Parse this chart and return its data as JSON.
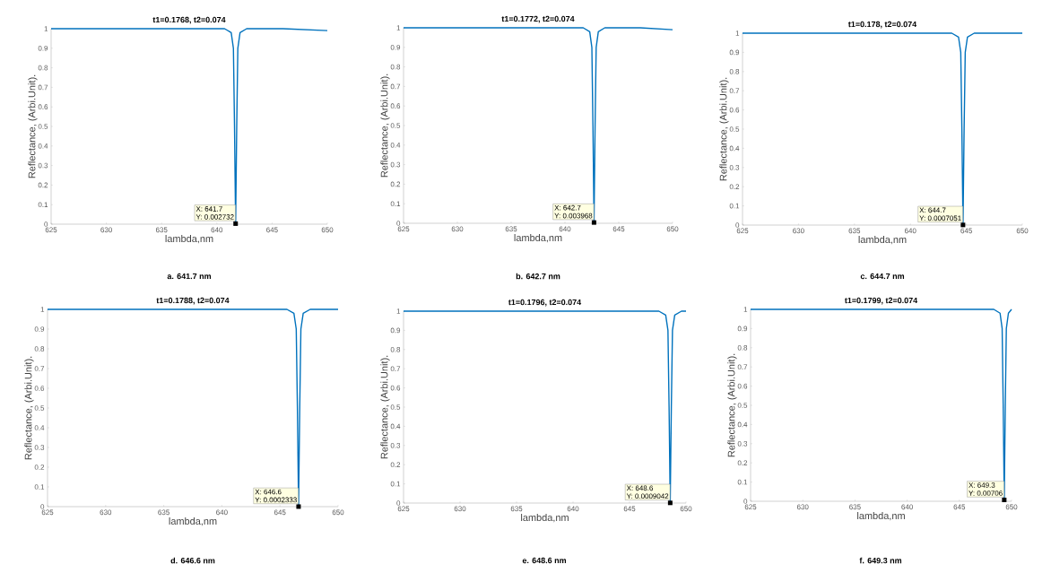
{
  "chart_data": [
    {
      "type": "line",
      "title": "t1=0.1768, t2=0.074",
      "xlabel": "lambda,nm",
      "ylabel": "Reflectance, (Arbi.Unit).",
      "xlim": [
        625,
        650
      ],
      "ylim": [
        0,
        1
      ],
      "xticks": [
        625,
        630,
        635,
        640,
        645,
        650
      ],
      "yticks": [
        0,
        0.1,
        0.2,
        0.3,
        0.4,
        0.5,
        0.6,
        0.7,
        0.8,
        0.9,
        1
      ],
      "grid": false,
      "series": [
        {
          "color": "#0072bd",
          "x": [
            625,
            635,
            640.7,
            641.3,
            641.5,
            641.6,
            641.7,
            641.8,
            641.9,
            642.1,
            642.7,
            646,
            650
          ],
          "values": [
            1,
            1,
            1,
            0.98,
            0.9,
            0.5,
            0.002732,
            0.5,
            0.9,
            0.98,
            1,
            1,
            0.99
          ]
        }
      ],
      "annotations": [
        {
          "text": "X: 641.7",
          "x": 641.7,
          "y": 0.002732
        },
        {
          "text": "Y: 0.002732",
          "x": 641.7,
          "y": 0.002732
        },
        "a. 641.7 nm"
      ]
    },
    {
      "type": "line",
      "title": "t1=0.1772, t2=0.074",
      "xlabel": "lambda,nm",
      "ylabel": "Reflectance, (Arbi.Unit).",
      "xlim": [
        625,
        650
      ],
      "ylim": [
        0,
        1
      ],
      "xticks": [
        625,
        630,
        635,
        640,
        645,
        650
      ],
      "yticks": [
        0,
        0.1,
        0.2,
        0.3,
        0.4,
        0.5,
        0.6,
        0.7,
        0.8,
        0.9,
        1
      ],
      "grid": false,
      "series": [
        {
          "color": "#0072bd",
          "x": [
            625,
            635,
            641.7,
            642.3,
            642.5,
            642.6,
            642.7,
            642.8,
            642.9,
            643.1,
            643.7,
            647,
            650
          ],
          "values": [
            1,
            1,
            1,
            0.98,
            0.9,
            0.5,
            0.003968,
            0.5,
            0.9,
            0.98,
            1,
            1,
            0.99
          ]
        }
      ],
      "annotations": [
        {
          "text": "X: 642.7",
          "x": 642.7,
          "y": 0.003968
        },
        {
          "text": "Y: 0.003968",
          "x": 642.7,
          "y": 0.003968
        },
        "b. 642.7 nm"
      ]
    },
    {
      "type": "line",
      "title": "t1=0.178, t2=0.074",
      "xlabel": "lambda,nm",
      "ylabel": "Reflectance, (Arbi.Unit).",
      "xlim": [
        625,
        650
      ],
      "ylim": [
        0,
        1
      ],
      "xticks": [
        625,
        630,
        635,
        640,
        645,
        650
      ],
      "yticks": [
        0,
        0.1,
        0.2,
        0.3,
        0.4,
        0.5,
        0.6,
        0.7,
        0.8,
        0.9,
        1
      ],
      "grid": false,
      "series": [
        {
          "color": "#0072bd",
          "x": [
            625,
            635,
            643.7,
            644.3,
            644.5,
            644.6,
            644.7,
            644.8,
            644.9,
            645.1,
            645.7,
            650
          ],
          "values": [
            1,
            1,
            1,
            0.98,
            0.9,
            0.5,
            0.0007051,
            0.5,
            0.9,
            0.98,
            1,
            1
          ]
        }
      ],
      "annotations": [
        {
          "text": "X: 644.7",
          "x": 644.7,
          "y": 0.0007051
        },
        {
          "text": "Y: 0.0007051",
          "x": 644.7,
          "y": 0.0007051
        },
        "c. 644.7 nm"
      ]
    },
    {
      "type": "line",
      "title": "t1=0.1788, t2=0.074",
      "xlabel": "lambda,nm",
      "ylabel": "Reflectance, (Arbi.Unit).",
      "xlim": [
        625,
        650
      ],
      "ylim": [
        0,
        1
      ],
      "xticks": [
        625,
        630,
        635,
        640,
        645,
        650
      ],
      "yticks": [
        0,
        0.1,
        0.2,
        0.3,
        0.4,
        0.5,
        0.6,
        0.7,
        0.8,
        0.9,
        1
      ],
      "grid": false,
      "series": [
        {
          "color": "#0072bd",
          "x": [
            625,
            635,
            645.6,
            646.2,
            646.4,
            646.5,
            646.6,
            646.7,
            646.8,
            647,
            647.6,
            650
          ],
          "values": [
            1,
            1,
            1,
            0.98,
            0.9,
            0.5,
            0.0002333,
            0.5,
            0.9,
            0.98,
            1,
            1
          ]
        }
      ],
      "annotations": [
        {
          "text": "X: 646.6",
          "x": 646.6,
          "y": 0.0002333
        },
        {
          "text": "Y: 0.0002333",
          "x": 646.6,
          "y": 0.0002333
        },
        "d. 646.6 nm"
      ]
    },
    {
      "type": "line",
      "title": "t1=0.1796, t2=0.074",
      "xlabel": "lambda,nm",
      "ylabel": "Reflectance, (Arbi.Unit).",
      "xlim": [
        625,
        650
      ],
      "ylim": [
        0,
        1
      ],
      "xticks": [
        625,
        630,
        635,
        640,
        645,
        650
      ],
      "yticks": [
        0,
        0.1,
        0.2,
        0.3,
        0.4,
        0.5,
        0.6,
        0.7,
        0.8,
        0.9,
        1
      ],
      "grid": false,
      "series": [
        {
          "color": "#0072bd",
          "x": [
            625,
            635,
            647.6,
            648.2,
            648.4,
            648.5,
            648.6,
            648.7,
            648.8,
            649,
            649.6,
            650
          ],
          "values": [
            1,
            1,
            1,
            0.98,
            0.9,
            0.5,
            0.0009042,
            0.5,
            0.9,
            0.98,
            1,
            1
          ]
        }
      ],
      "annotations": [
        {
          "text": "X: 648.6",
          "x": 648.6,
          "y": 0.0009042
        },
        {
          "text": "Y: 0.0009042",
          "x": 648.6,
          "y": 0.0009042
        },
        "e. 648.6 nm"
      ]
    },
    {
      "type": "line",
      "title": "t1=0.1799, t2=0.074",
      "xlabel": "lambda,nm",
      "ylabel": "Reflectance, (Arbi.Unit).",
      "xlim": [
        625,
        650
      ],
      "ylim": [
        0,
        1
      ],
      "xticks": [
        625,
        630,
        635,
        640,
        645,
        650
      ],
      "yticks": [
        0,
        0.1,
        0.2,
        0.3,
        0.4,
        0.5,
        0.6,
        0.7,
        0.8,
        0.9,
        1
      ],
      "grid": false,
      "series": [
        {
          "color": "#0072bd",
          "x": [
            625,
            635,
            648.3,
            648.9,
            649.1,
            649.2,
            649.3,
            649.4,
            649.5,
            649.7,
            650
          ],
          "values": [
            1,
            1,
            1,
            0.98,
            0.9,
            0.5,
            0.00706,
            0.5,
            0.9,
            0.98,
            1
          ]
        }
      ],
      "annotations": [
        {
          "text": "X: 649.3",
          "x": 649.3,
          "y": 0.00706
        },
        {
          "text": "Y: 0.00706",
          "x": 649.3,
          "y": 0.00706
        },
        "f. 649.3 nm"
      ]
    }
  ]
}
